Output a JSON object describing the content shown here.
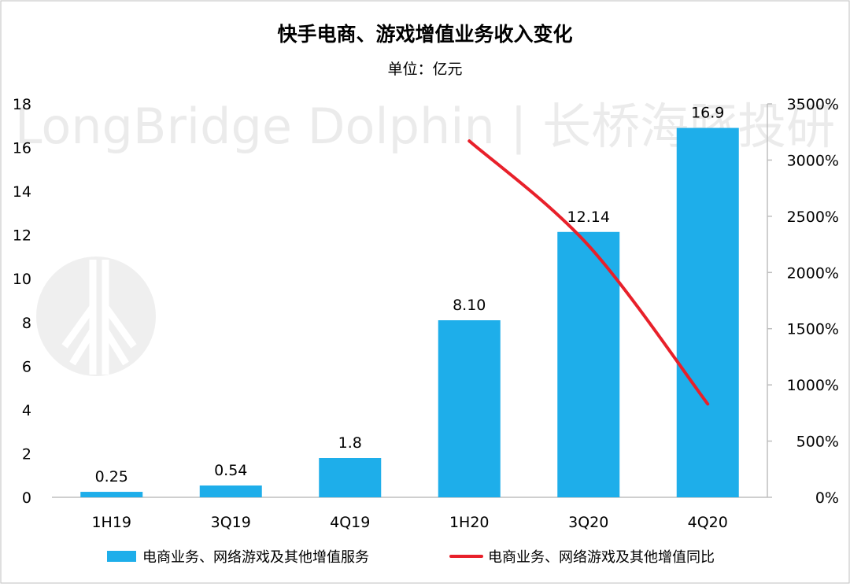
{
  "chart_data": {
    "type": "bar+line",
    "title": "快手电商、游戏增值业务收入变化",
    "subtitle": "单位：亿元",
    "categories": [
      "1H19",
      "3Q19",
      "4Q19",
      "1H20",
      "3Q20",
      "4Q20"
    ],
    "series": [
      {
        "name": "电商业务、网络游戏及其他增值服务",
        "type": "bar",
        "axis": "left",
        "color": "#1EAEEA",
        "values": [
          0.25,
          0.54,
          1.8,
          8.1,
          12.14,
          16.9
        ],
        "labels": [
          "0.25",
          "0.54",
          "1.8",
          "8.10",
          "12.14",
          "16.9"
        ]
      },
      {
        "name": "电商业务、网络游戏及其他增值同比",
        "type": "line",
        "axis": "right",
        "color": "#E8202A",
        "values": [
          null,
          null,
          null,
          3170,
          2240,
          830
        ]
      }
    ],
    "y_left": {
      "min": 0,
      "max": 18,
      "ticks": [
        "0",
        "2",
        "4",
        "6",
        "8",
        "10",
        "12",
        "14",
        "16",
        "18"
      ]
    },
    "y_right": {
      "min": 0,
      "max": 3500,
      "ticks": [
        "0%",
        "500%",
        "1000%",
        "1500%",
        "2000%",
        "2500%",
        "3000%",
        "3500%"
      ]
    },
    "grid": false,
    "legend_position": "bottom",
    "watermark": "LongBridge Dolphin | 长桥海豚投研"
  }
}
